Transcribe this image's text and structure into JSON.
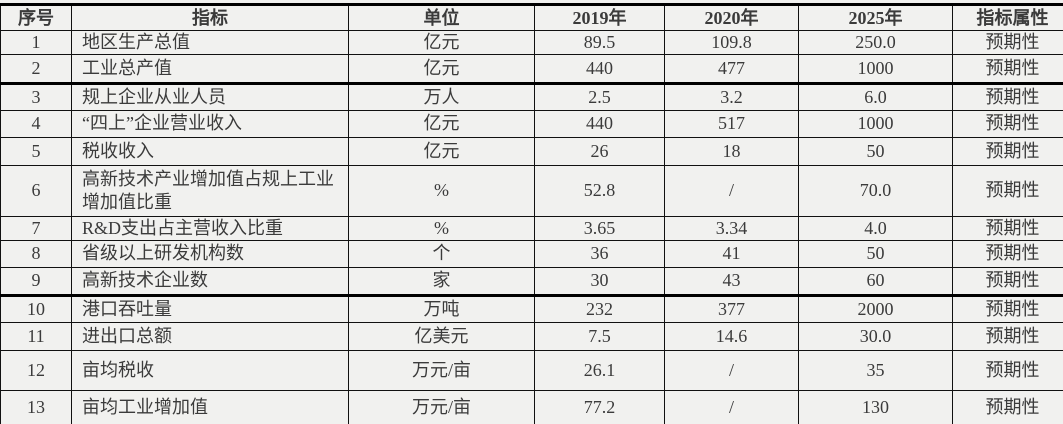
{
  "page": {
    "background_color": "#f1f1ef",
    "text_color": "#3b3b3b",
    "border_color": "#000000"
  },
  "table": {
    "headers": {
      "num": "序号",
      "indicator": "指标",
      "unit": "单位",
      "y2019": "2019年",
      "y2020": "2020年",
      "y2025": "2025年",
      "attr": "指标属性"
    },
    "rows": [
      {
        "num": "1",
        "indicator": "地区生产总值",
        "unit": "亿元",
        "y2019": "89.5",
        "y2020": "109.8",
        "y2025": "250.0",
        "attr": "预期性"
      },
      {
        "num": "2",
        "indicator": "工业总产值",
        "unit": "亿元",
        "y2019": "440",
        "y2020": "477",
        "y2025": "1000",
        "attr": "预期性"
      },
      {
        "num": "3",
        "indicator": "规上企业从业人员",
        "unit": "万人",
        "y2019": "2.5",
        "y2020": "3.2",
        "y2025": "6.0",
        "attr": "预期性"
      },
      {
        "num": "4",
        "indicator": "“四上”企业营业收入",
        "unit": "亿元",
        "y2019": "440",
        "y2020": "517",
        "y2025": "1000",
        "attr": "预期性"
      },
      {
        "num": "5",
        "indicator": "税收收入",
        "unit": "亿元",
        "y2019": "26",
        "y2020": "18",
        "y2025": "50",
        "attr": "预期性"
      },
      {
        "num": "6",
        "indicator": "高新技术产业增加值占规上工业增加值比重",
        "unit": "%",
        "y2019": "52.8",
        "y2020": "/",
        "y2025": "70.0",
        "attr": "预期性"
      },
      {
        "num": "7",
        "indicator": "R&D支出占主营收入比重",
        "unit": "%",
        "y2019": "3.65",
        "y2020": "3.34",
        "y2025": "4.0",
        "attr": "预期性"
      },
      {
        "num": "8",
        "indicator": "省级以上研发机构数",
        "unit": "个",
        "y2019": "36",
        "y2020": "41",
        "y2025": "50",
        "attr": "预期性"
      },
      {
        "num": "9",
        "indicator": "高新技术企业数",
        "unit": "家",
        "y2019": "30",
        "y2020": "43",
        "y2025": "60",
        "attr": "预期性"
      },
      {
        "num": "10",
        "indicator": "港口吞吐量",
        "unit": "万吨",
        "y2019": "232",
        "y2020": "377",
        "y2025": "2000",
        "attr": "预期性"
      },
      {
        "num": "11",
        "indicator": "进出口总额",
        "unit": "亿美元",
        "y2019": "7.5",
        "y2020": "14.6",
        "y2025": "30.0",
        "attr": "预期性"
      },
      {
        "num": "12",
        "indicator": "亩均税收",
        "unit": "万元/亩",
        "y2019": "26.1",
        "y2020": "/",
        "y2025": "35",
        "attr": "预期性"
      },
      {
        "num": "13",
        "indicator": "亩均工业增加值",
        "unit": "万元/亩",
        "y2019": "77.2",
        "y2020": "/",
        "y2025": "130",
        "attr": "预期性"
      }
    ]
  }
}
